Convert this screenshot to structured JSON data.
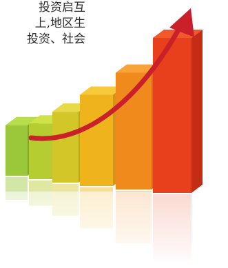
{
  "text_fragment": {
    "lines": [
      "投资启互",
      "上,地区生",
      "投资、社会"
    ],
    "color": "#2a2a2a"
  },
  "chart": {
    "bars": [
      {
        "index": 1,
        "level": 0.18,
        "colors": [
          "#9bc83a",
          "#b7dd4c",
          "#7da92c"
        ]
      },
      {
        "index": 2,
        "level": 0.22,
        "colors": [
          "#b5cd30",
          "#cfe24a",
          "#98ad22"
        ]
      },
      {
        "index": 3,
        "level": 0.34,
        "colors": [
          "#d3c628",
          "#e6da48",
          "#b6aa1c"
        ]
      },
      {
        "index": 4,
        "level": 0.5,
        "colors": [
          "#efb41c",
          "#f7ca3c",
          "#d29616"
        ]
      },
      {
        "index": 5,
        "level": 0.7,
        "colors": [
          "#f08a1c",
          "#f8a33a",
          "#d36e14"
        ]
      },
      {
        "index": 6,
        "level": 1.0,
        "colors": [
          "#e8401c",
          "#f1582c",
          "#c52c14"
        ]
      }
    ],
    "arrow_color": "#c9202a",
    "direction": "upward trend"
  }
}
